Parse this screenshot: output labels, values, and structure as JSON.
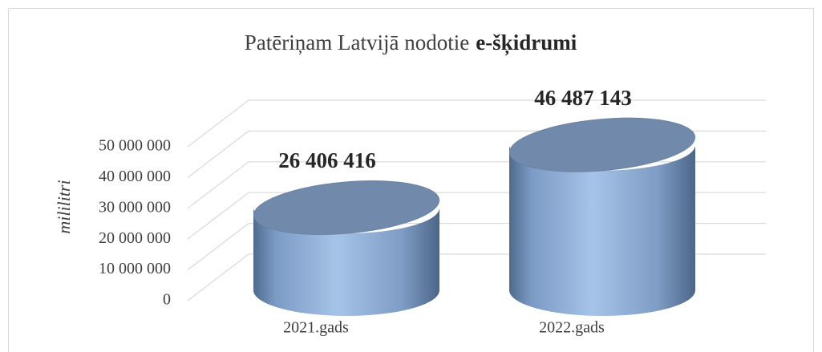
{
  "chart_data": {
    "type": "bar3d",
    "title": "Patēriņam Latvijā nodotie",
    "title_bold": "e-šķidrumi",
    "y_label": "mililitri",
    "categories": [
      "2021.gads",
      "2022.gads"
    ],
    "values": [
      26406416,
      46487143
    ],
    "value_labels": [
      "26 406 416",
      "46 487 143"
    ],
    "color": "#95b3d7",
    "ylim": [
      0,
      50000000
    ],
    "yticks": [
      {
        "value": 0,
        "label": "0"
      },
      {
        "value": 10000000,
        "label": "10 000 000"
      },
      {
        "value": 20000000,
        "label": "20 000 000"
      },
      {
        "value": 30000000,
        "label": "30 000 000"
      },
      {
        "value": 40000000,
        "label": "40 000 000"
      },
      {
        "value": 50000000,
        "label": "50 000 000"
      }
    ],
    "grid": true
  }
}
